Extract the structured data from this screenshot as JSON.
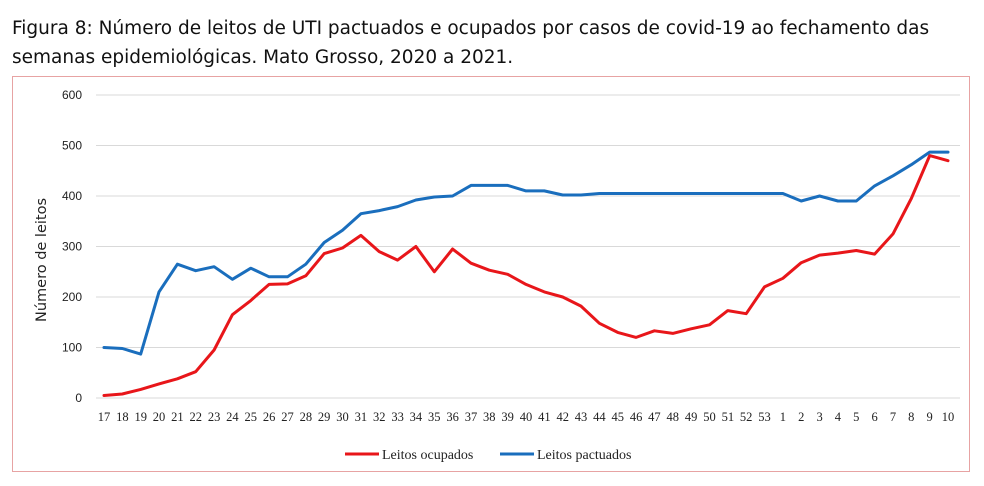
{
  "caption": "Figura 8: Número de leitos de UTI pactuados e ocupados por casos de covid-19 ao fechamento das semanas epidemiológicas. Mato Grosso, 2020 a 2021.",
  "chart_data": {
    "type": "line",
    "title": "Figura 8: Número de leitos de UTI pactuados e ocupados por casos de covid-19 ao fechamento das semanas epidemiológicas. Mato Grosso, 2020 a 2021.",
    "xlabel": "",
    "ylabel": "Número de leitos",
    "ylim": [
      0,
      600
    ],
    "yticks": [
      0,
      100,
      200,
      300,
      400,
      500,
      600
    ],
    "grid": true,
    "legend_position": "bottom",
    "categories": [
      "17",
      "18",
      "19",
      "20",
      "21",
      "22",
      "23",
      "24",
      "25",
      "26",
      "27",
      "28",
      "29",
      "30",
      "31",
      "32",
      "33",
      "34",
      "35",
      "36",
      "37",
      "38",
      "39",
      "40",
      "41",
      "42",
      "43",
      "44",
      "45",
      "46",
      "47",
      "48",
      "49",
      "50",
      "51",
      "52",
      "53",
      "1",
      "2",
      "3",
      "4",
      "5",
      "6",
      "7",
      "8",
      "9",
      "10"
    ],
    "series": [
      {
        "name": "Leitos ocupados",
        "color": "#e8161a",
        "values": [
          5,
          8,
          17,
          28,
          38,
          52,
          95,
          165,
          193,
          225,
          226,
          242,
          286,
          297,
          322,
          290,
          273,
          300,
          250,
          295,
          267,
          253,
          245,
          225,
          210,
          200,
          182,
          148,
          130,
          120,
          133,
          128,
          137,
          145,
          173,
          167,
          220,
          237,
          268,
          283,
          287,
          292,
          285,
          325,
          395,
          480,
          470
        ]
      },
      {
        "name": "Leitos pactuados",
        "color": "#1a6ebd",
        "values": [
          100,
          98,
          87,
          210,
          265,
          252,
          260,
          235,
          257,
          240,
          240,
          265,
          308,
          332,
          365,
          371,
          379,
          392,
          398,
          400,
          421,
          421,
          421,
          410,
          410,
          402,
          402,
          405,
          405,
          405,
          405,
          405,
          405,
          405,
          405,
          405,
          405,
          405,
          390,
          400,
          390,
          390,
          420,
          440,
          462,
          487,
          487
        ]
      }
    ]
  }
}
